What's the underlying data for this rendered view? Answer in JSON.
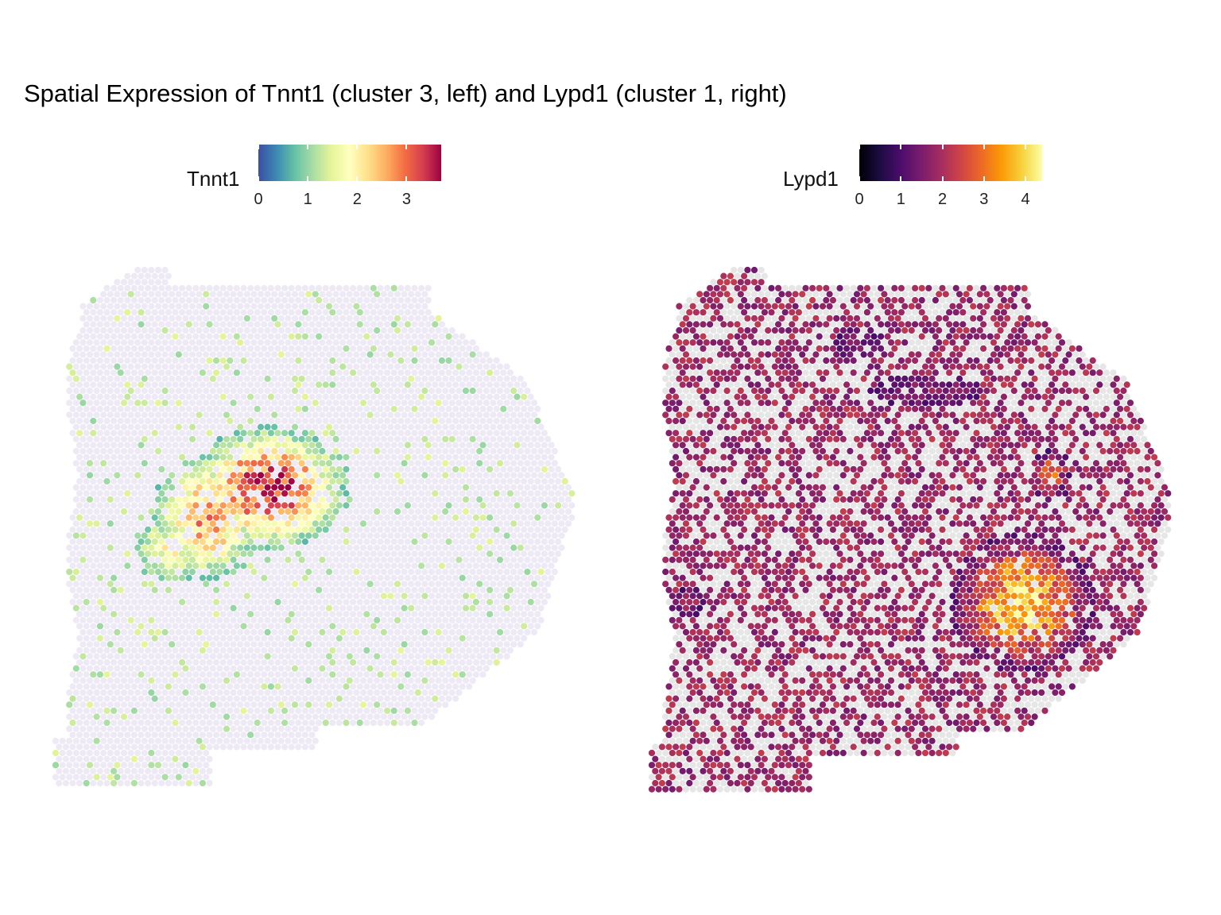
{
  "title": "Spatial Expression of Tnnt1 (cluster 3, left) and Lypd1 (cluster 1, right)",
  "chart_data": [
    {
      "type": "scatter",
      "description_panel": "left",
      "gene": "Tnnt1",
      "legend": {
        "title": "Tnnt1",
        "ticks": [
          "0",
          "1",
          "2",
          "3"
        ],
        "tick_values": [
          0,
          1,
          2,
          3
        ],
        "range": [
          0,
          3.7
        ],
        "palette": [
          "#3d4ea4",
          "#3c8ab4",
          "#66c2a5",
          "#aadda4",
          "#e6f598",
          "#ffffbf",
          "#fee08b",
          "#fdae61",
          "#f46d43",
          "#d53e4f",
          "#9e0142"
        ]
      },
      "zero_color": "#eeeaf5",
      "hotspots": [
        {
          "cx": 31,
          "cy": 36,
          "rx": 9,
          "ry": 8,
          "peak": 3.5
        },
        {
          "cx": 22,
          "cy": 41,
          "rx": 7,
          "ry": 9,
          "peak": 2.6
        },
        {
          "cx": 17,
          "cy": 46,
          "rx": 6,
          "ry": 6,
          "peak": 1.8
        }
      ]
    },
    {
      "type": "scatter",
      "description_panel": "right",
      "gene": "Lypd1",
      "legend": {
        "title": "Lypd1",
        "ticks": [
          "0",
          "1",
          "2",
          "3",
          "4"
        ],
        "tick_values": [
          0,
          1,
          2,
          3,
          4
        ],
        "range": [
          0,
          4.4
        ],
        "palette": [
          "#000004",
          "#1b0c41",
          "#4a0c6b",
          "#781c6d",
          "#a52c60",
          "#cf4446",
          "#ed6925",
          "#fb9b06",
          "#f7d13d",
          "#fcffa4"
        ]
      },
      "zero_color": "#e6e6e6",
      "hotspots": [
        {
          "cx": 54,
          "cy": 55,
          "rx": 9,
          "ry": 10,
          "peak": 4.2
        },
        {
          "cx": 51,
          "cy": 58,
          "rx": 7,
          "ry": 6,
          "peak": 3.4
        },
        {
          "cx": 58,
          "cy": 34,
          "rx": 3,
          "ry": 4,
          "peak": 3.0
        },
        {
          "cx": 30,
          "cy": 12,
          "rx": 8,
          "ry": 5,
          "peak": 1.5
        },
        {
          "cx": 40,
          "cy": 20,
          "rx": 15,
          "ry": 5,
          "peak": 1.6
        },
        {
          "cx": 5,
          "cy": 55,
          "rx": 3,
          "ry": 3,
          "peak": 2.0
        }
      ]
    }
  ]
}
